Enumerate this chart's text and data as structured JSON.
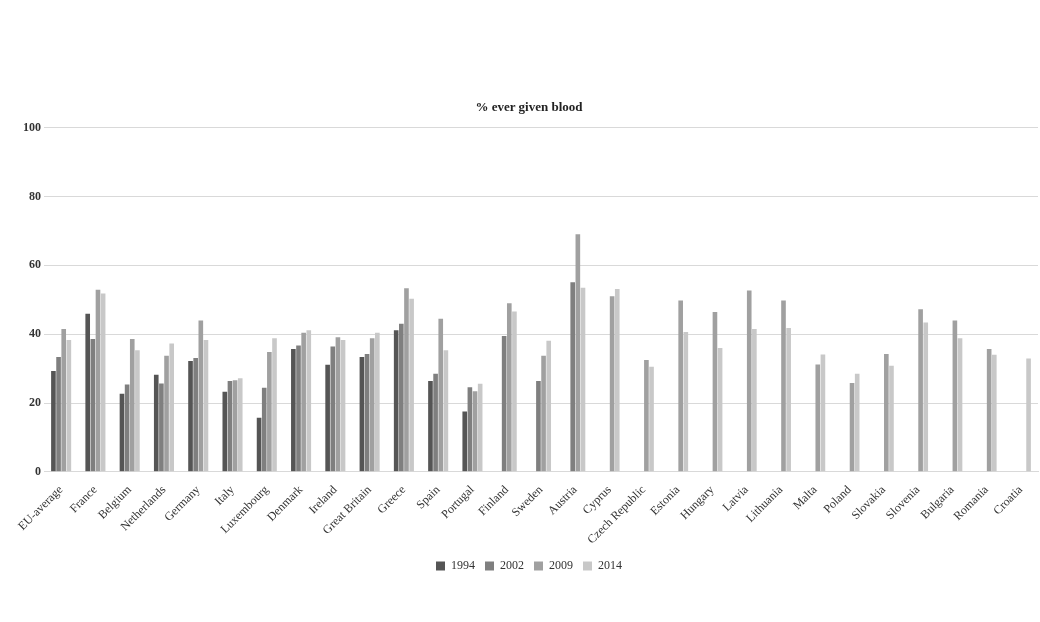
{
  "chart_data": {
    "type": "bar",
    "title": "% ever given blood",
    "categories": [
      "EU-average",
      "France",
      "Belgium",
      "Netherlands",
      "Germany",
      "Italy",
      "Luxembourg",
      "Denmark",
      "Ireland",
      "Great Britain",
      "Greece",
      "Spain",
      "Portugal",
      "Finland",
      "Sweden",
      "Austria",
      "Cyprus",
      "Czech Republic",
      "Estonia",
      "Hungary",
      "Latvia",
      "Lithuania",
      "Malta",
      "Poland",
      "Slovakia",
      "Slovenia",
      "Bulgaria",
      "Romania",
      "Croatia"
    ],
    "series": [
      {
        "name": "1994",
        "color": "#555555",
        "values": [
          29.3,
          45.9,
          22.7,
          28.2,
          32.2,
          23.3,
          15.7,
          35.7,
          31.1,
          33.4,
          41.1,
          26.4,
          17.5,
          null,
          null,
          null,
          null,
          null,
          null,
          null,
          null,
          null,
          null,
          null,
          null,
          null,
          null,
          null,
          null
        ]
      },
      {
        "name": "2002",
        "color": "#7f7f7f",
        "values": [
          33.4,
          38.6,
          25.4,
          25.7,
          33.1,
          26.4,
          24.4,
          36.7,
          36.4,
          34.2,
          43.0,
          28.5,
          24.6,
          39.5,
          26.4,
          55.1,
          null,
          null,
          null,
          null,
          null,
          null,
          null,
          null,
          null,
          null,
          null,
          null,
          null
        ]
      },
      {
        "name": "2009",
        "color": "#a0a0a0",
        "values": [
          41.5,
          52.9,
          38.6,
          33.7,
          44.0,
          26.6,
          34.8,
          40.4,
          39.1,
          38.8,
          53.3,
          44.5,
          23.4,
          49.0,
          33.7,
          69.0,
          51.0,
          32.5,
          49.8,
          46.4,
          52.7,
          49.8,
          31.2,
          25.8,
          34.2,
          47.2,
          44.0,
          35.7,
          null
        ]
      },
      {
        "name": "2014",
        "color": "#c8c8c8",
        "values": [
          38.3,
          51.8,
          35.3,
          37.3,
          38.3,
          27.2,
          38.8,
          41.1,
          38.3,
          40.4,
          50.3,
          35.3,
          25.6,
          46.6,
          38.1,
          53.5,
          53.1,
          30.5,
          40.6,
          36.0,
          41.5,
          41.8,
          34.1,
          28.5,
          30.8,
          43.4,
          38.8,
          34.0,
          32.9
        ]
      }
    ],
    "ylim": [
      0,
      100
    ],
    "yticks": [
      0,
      20,
      40,
      60,
      80,
      100
    ],
    "grid": "y",
    "legend": "bottom"
  }
}
